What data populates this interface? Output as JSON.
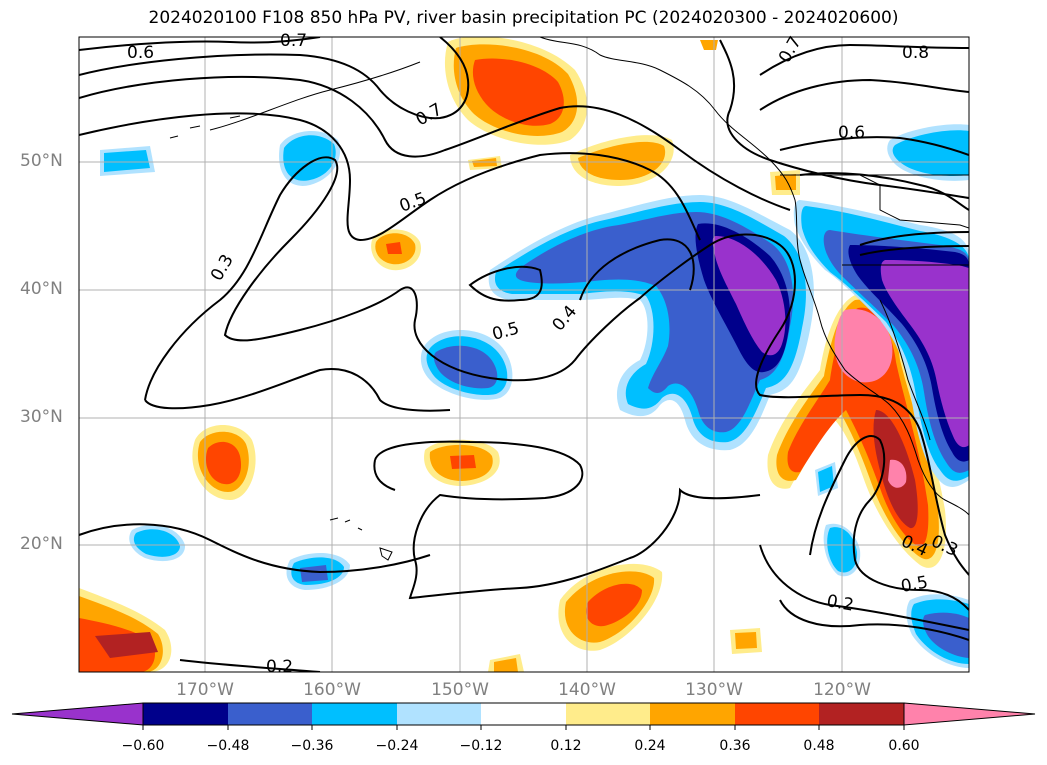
{
  "title": "2024020100 F108 850 hPa PV, river basin precipitation PC (2024020300 - 2024020600)",
  "latitude_labels": [
    "50°N",
    "40°N",
    "30°N",
    "20°N"
  ],
  "longitude_labels": [
    "170°W",
    "160°W",
    "150°W",
    "140°W",
    "130°W",
    "120°W"
  ],
  "contour_labels": [
    "0.6",
    "0.7",
    "0.7",
    "0.7",
    "0.8",
    "0.6",
    "0.5",
    "0.3",
    "0.5",
    "0.4",
    "0.2",
    "0.4",
    "0.3",
    "0.5",
    "0.2"
  ],
  "colorbar": {
    "tick_labels": [
      "−0.60",
      "−0.48",
      "−0.36",
      "−0.24",
      "−0.12",
      "0.12",
      "0.24",
      "0.36",
      "0.48",
      "0.60"
    ],
    "colors": [
      "#9932cc",
      "#00008b",
      "#3a5fcd",
      "#00bfff",
      "#b0e2ff",
      "#ffffff",
      "#ffec8b",
      "#ffa500",
      "#ff4500",
      "#b22222",
      "#ff82ab"
    ],
    "extend": "both"
  },
  "colors": {
    "pink": "#ff82ab",
    "darkred": "#b22222",
    "orangered": "#ff4500",
    "orange": "#ffa500",
    "yellow": "#ffec8b",
    "lightblue": "#b0e2ff",
    "skyblue": "#00bfff",
    "royal": "#3a5fcd",
    "navy": "#00008b",
    "purple": "#9932cc"
  }
}
